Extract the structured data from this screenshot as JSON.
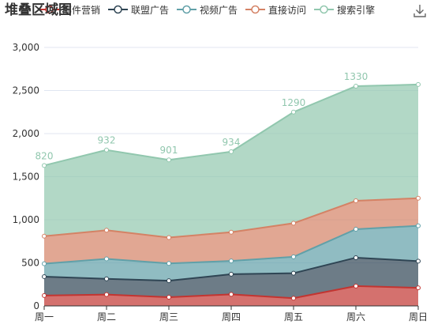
{
  "toolbox": {
    "download_icon": "download-icon"
  },
  "chart_data": {
    "type": "area",
    "stacked": true,
    "title": "堆叠区域图",
    "categories": [
      "周一",
      "周二",
      "周三",
      "周四",
      "周五",
      "周六",
      "周日"
    ],
    "series": [
      {
        "name": "邮件营销",
        "color": "#c23531",
        "values": [
          120,
          132,
          101,
          134,
          90,
          230,
          210
        ]
      },
      {
        "name": "联盟广告",
        "color": "#2f4554",
        "values": [
          220,
          182,
          191,
          234,
          290,
          330,
          310
        ]
      },
      {
        "name": "视频广告",
        "color": "#61a0a8",
        "values": [
          150,
          232,
          201,
          154,
          190,
          330,
          410
        ]
      },
      {
        "name": "直接访问",
        "color": "#d48265",
        "values": [
          320,
          332,
          301,
          334,
          390,
          330,
          320
        ]
      },
      {
        "name": "搜索引擎",
        "color": "#91c7ae",
        "values": [
          820,
          932,
          901,
          934,
          1290,
          1330,
          1320
        ]
      }
    ],
    "data_labels": {
      "series": "搜索引擎",
      "shown": [
        820,
        932,
        901,
        934,
        1290,
        1330
      ]
    },
    "y_ticks": [
      "0",
      "500",
      "1,000",
      "1,500",
      "2,000",
      "2,500",
      "3,000"
    ],
    "ylim": [
      0,
      3000
    ],
    "grid": true,
    "legend_position": "top-left"
  }
}
